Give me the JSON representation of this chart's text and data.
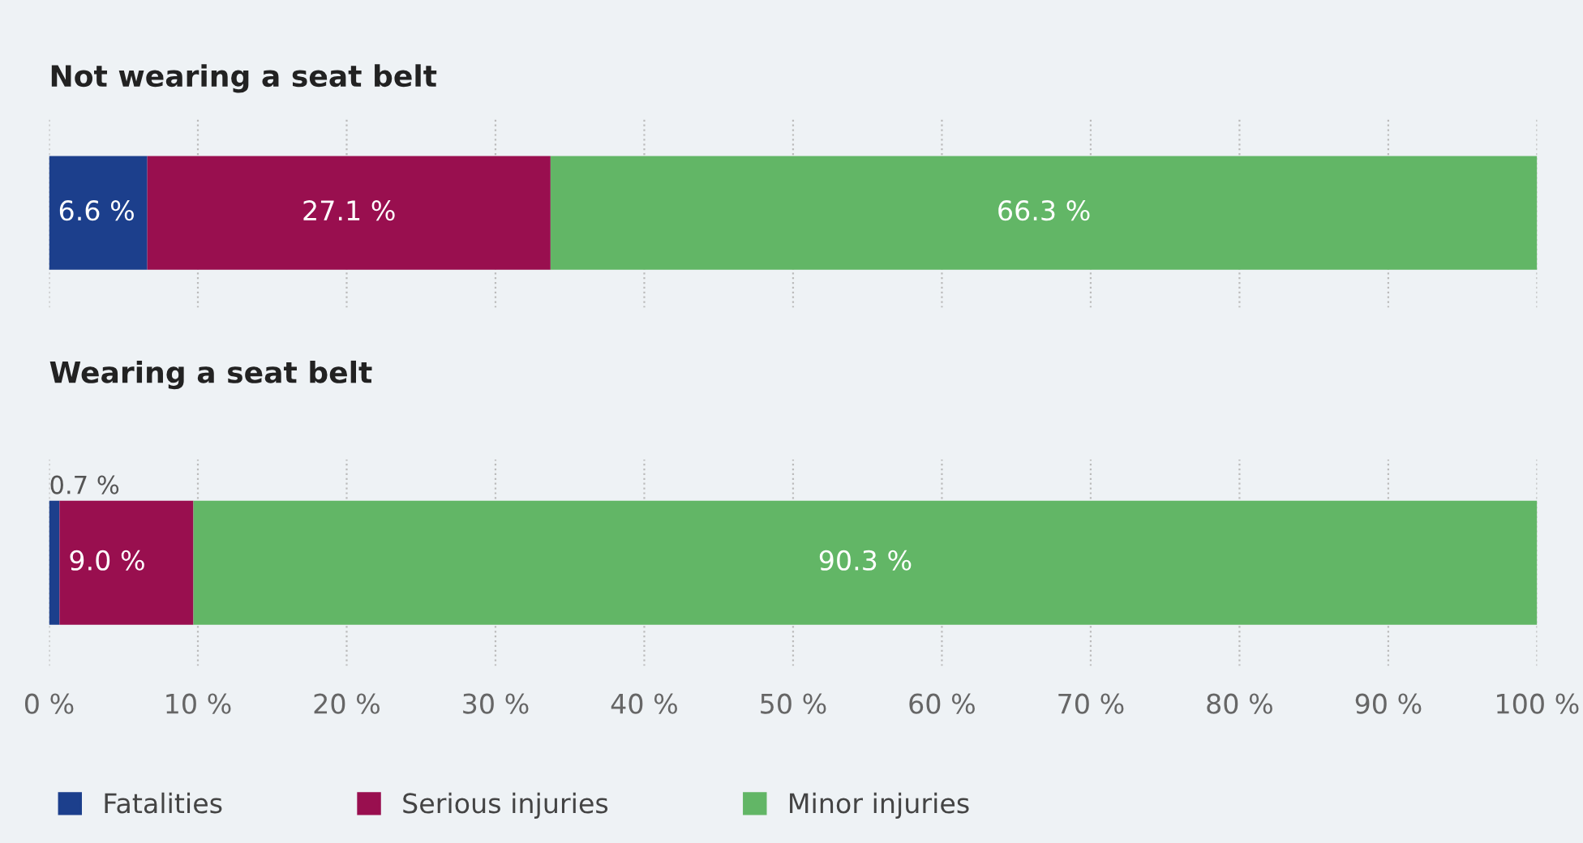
{
  "chart_data": [
    {
      "type": "bar",
      "orientation": "horizontal",
      "stacked": true,
      "title": "Not wearing a seat belt",
      "categories": [
        null
      ],
      "series": [
        {
          "color": "#1c3f8c",
          "values": [
            6.6
          ],
          "value_labels": [
            "6.6 %"
          ]
        },
        {
          "color": "#990f4f",
          "values": [
            27.1
          ],
          "value_labels": [
            "27.1 %"
          ]
        },
        {
          "color": "#62b666",
          "values": [
            66.3
          ],
          "value_labels": [
            "66.3 %"
          ]
        }
      ],
      "xlim": [
        0,
        100
      ],
      "xticks": [
        0,
        10,
        20,
        30,
        40,
        50,
        60,
        70,
        80,
        90,
        100
      ],
      "grid": "x",
      "line_style": "dotted",
      "tick_labels": false,
      "legend": false
    },
    {
      "type": "bar",
      "orientation": "horizontal",
      "stacked": true,
      "title": "Wearing a seat belt",
      "categories": [
        null
      ],
      "series": [
        {
          "name": "Fatalities",
          "color": "#1c3f8c",
          "values": [
            0.7
          ],
          "value_labels": [
            "0.7 %"
          ]
        },
        {
          "name": "Serious injuries",
          "color": "#990f4f",
          "values": [
            9.0
          ],
          "value_labels": [
            "9.0 %"
          ]
        },
        {
          "name": "Minor injuries",
          "color": "#62b666",
          "values": [
            90.3
          ],
          "value_labels": [
            "90.3 %"
          ]
        }
      ],
      "xlim": [
        0,
        100
      ],
      "xticks": [
        {
          "value": 0,
          "label": "0 %"
        },
        {
          "value": 10,
          "label": "10 %"
        },
        {
          "value": 20,
          "label": "20 %"
        },
        {
          "value": 30,
          "label": "30 %"
        },
        {
          "value": 40,
          "label": "40 %"
        },
        {
          "value": 50,
          "label": "50 %"
        },
        {
          "value": 60,
          "label": "60 %"
        },
        {
          "value": 70,
          "label": "70 %"
        },
        {
          "value": 80,
          "label": "80 %"
        },
        {
          "value": 90,
          "label": "90 %"
        },
        {
          "value": 100,
          "label": "100 %"
        }
      ],
      "grid": "x",
      "line_style": "dotted",
      "tick_labels": "x",
      "legend": "bottom left"
    }
  ]
}
